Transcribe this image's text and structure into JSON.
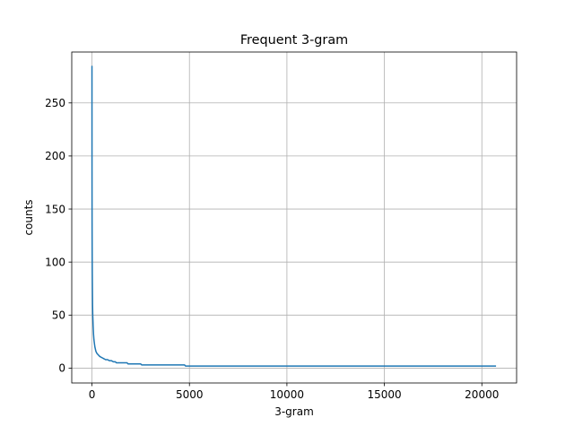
{
  "chart_data": {
    "type": "line",
    "title": "Frequent 3-gram",
    "xlabel": "3-gram",
    "ylabel": "counts",
    "xlim": [
      -1037,
      21782
    ],
    "ylim": [
      -14,
      298
    ],
    "xticks": [
      0,
      5000,
      10000,
      15000,
      20000
    ],
    "yticks": [
      0,
      50,
      100,
      150,
      200,
      250
    ],
    "grid": true,
    "series_color": "#1f77b4",
    "grid_color": "#b0b0b0",
    "series": [
      {
        "x": [
          0,
          1,
          2,
          3,
          5,
          8,
          12,
          16,
          20,
          25,
          30,
          40,
          50,
          60,
          70,
          80,
          100,
          120,
          150,
          200,
          250,
          300,
          350,
          400,
          500,
          600,
          700,
          800,
          900,
          1000,
          1100,
          1200,
          1250,
          1800,
          1850,
          2500,
          2550,
          4750,
          4800,
          20727
        ],
        "y": [
          285,
          245,
          205,
          175,
          150,
          125,
          105,
          90,
          80,
          70,
          60,
          50,
          45,
          40,
          36,
          32,
          27,
          24,
          20,
          16,
          14,
          13,
          12,
          11,
          10,
          9,
          8,
          8,
          7,
          7,
          6,
          6,
          5,
          5,
          4,
          4,
          3,
          3,
          2,
          2
        ]
      }
    ]
  }
}
